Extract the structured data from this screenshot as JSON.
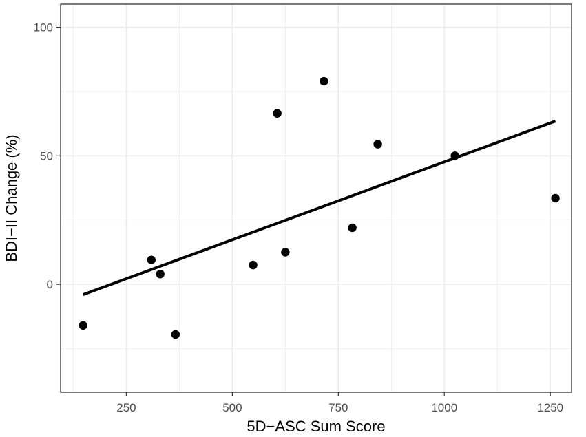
{
  "chart_data": {
    "type": "scatter",
    "xlabel": "5D−ASC Sum Score",
    "ylabel": "BDI−II Change (%)",
    "xlim": [
      95,
      1300
    ],
    "ylim": [
      -42,
      109
    ],
    "x_ticks": [
      250,
      500,
      750,
      1000,
      1250
    ],
    "x_tick_labels": [
      "250",
      "500",
      "750",
      "1000",
      "1250"
    ],
    "y_ticks": [
      0,
      50,
      100
    ],
    "y_tick_labels": [
      "0",
      "50",
      "100"
    ],
    "grid": true,
    "points": [
      {
        "x": 148,
        "y": -16
      },
      {
        "x": 309,
        "y": 9.5
      },
      {
        "x": 330,
        "y": 4
      },
      {
        "x": 366,
        "y": -19.5
      },
      {
        "x": 549,
        "y": 7.5
      },
      {
        "x": 606,
        "y": 66.5
      },
      {
        "x": 625,
        "y": 12.5
      },
      {
        "x": 716,
        "y": 79
      },
      {
        "x": 783,
        "y": 22
      },
      {
        "x": 843,
        "y": 54.5
      },
      {
        "x": 1025,
        "y": 50
      },
      {
        "x": 1262,
        "y": 33.5
      }
    ],
    "fit_line": {
      "x": [
        148,
        1262
      ],
      "y": [
        -4,
        63.5
      ]
    },
    "colors": {
      "points": "#000000",
      "line": "#000000",
      "grid": "#ebebeb",
      "panel_border": "#333333"
    }
  }
}
